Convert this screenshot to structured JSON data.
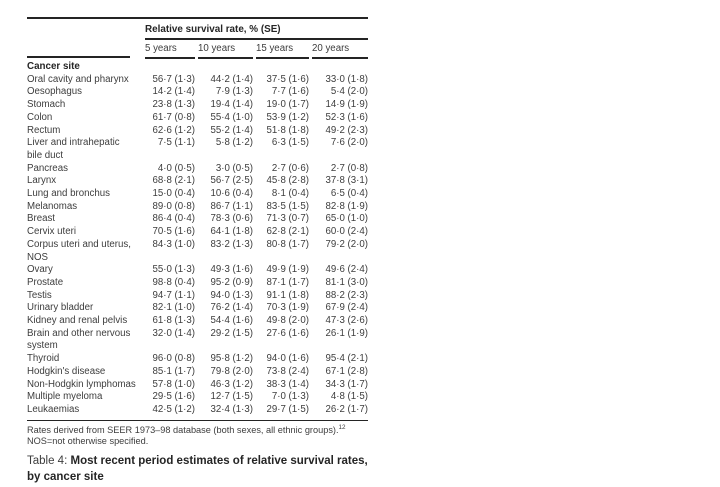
{
  "table": {
    "span_header": "Relative survival rate, % (SE)",
    "col_headers": [
      "5 years",
      "10 years",
      "15 years",
      "20 years"
    ],
    "row_header": "Cancer site",
    "rows": [
      {
        "label": "Oral cavity and pharynx",
        "values": [
          "56·7 (1·3)",
          "44·2 (1·4)",
          "37·5 (1·6)",
          "33·0 (1·8)"
        ]
      },
      {
        "label": "Oesophagus",
        "values": [
          "14·2 (1·4)",
          "7·9 (1·3)",
          "7·7 (1·6)",
          "5·4 (2·0)"
        ]
      },
      {
        "label": "Stomach",
        "values": [
          "23·8 (1·3)",
          "19·4 (1·4)",
          "19·0 (1·7)",
          "14·9 (1·9)"
        ]
      },
      {
        "label": "Colon",
        "values": [
          "61·7 (0·8)",
          "55·4 (1·0)",
          "53·9 (1·2)",
          "52·3 (1·6)"
        ]
      },
      {
        "label": "Rectum",
        "values": [
          "62·6 (1·2)",
          "55·2 (1·4)",
          "51·8 (1·8)",
          "49·2 (2·3)"
        ]
      },
      {
        "label": "Liver and intrahepatic\nbile duct",
        "values": [
          "7·5 (1·1)",
          "5·8 (1·2)",
          "6·3 (1·5)",
          "7·6 (2·0)"
        ]
      },
      {
        "label": "Pancreas",
        "values": [
          "4·0 (0·5)",
          "3·0 (0·5)",
          "2·7 (0·6)",
          "2·7 (0·8)"
        ]
      },
      {
        "label": "Larynx",
        "values": [
          "68·8 (2·1)",
          "56·7 (2·5)",
          "45·8 (2·8)",
          "37·8 (3·1)"
        ]
      },
      {
        "label": "Lung and bronchus",
        "values": [
          "15·0 (0·4)",
          "10·6 (0·4)",
          "8·1 (0·4)",
          "6·5 (0·4)"
        ]
      },
      {
        "label": "Melanomas",
        "values": [
          "89·0 (0·8)",
          "86·7 (1·1)",
          "83·5 (1·5)",
          "82·8 (1·9)"
        ]
      },
      {
        "label": "Breast",
        "values": [
          "86·4 (0·4)",
          "78·3 (0·6)",
          "71·3 (0·7)",
          "65·0 (1·0)"
        ]
      },
      {
        "label": "Cervix uteri",
        "values": [
          "70·5 (1·6)",
          "64·1 (1·8)",
          "62·8 (2·1)",
          "60·0 (2·4)"
        ]
      },
      {
        "label": "Corpus uteri and uterus,\nNOS",
        "values": [
          "84·3 (1·0)",
          "83·2 (1·3)",
          "80·8 (1·7)",
          "79·2 (2·0)"
        ]
      },
      {
        "label": "Ovary",
        "values": [
          "55·0 (1·3)",
          "49·3 (1·6)",
          "49·9 (1·9)",
          "49·6 (2·4)"
        ]
      },
      {
        "label": "Prostate",
        "values": [
          "98·8 (0·4)",
          "95·2 (0·9)",
          "87·1 (1·7)",
          "81·1 (3·0)"
        ]
      },
      {
        "label": "Testis",
        "values": [
          "94·7 (1·1)",
          "94·0 (1·3)",
          "91·1 (1·8)",
          "88·2 (2·3)"
        ]
      },
      {
        "label": "Urinary bladder",
        "values": [
          "82·1 (1·0)",
          "76·2 (1·4)",
          "70·3 (1·9)",
          "67·9 (2·4)"
        ]
      },
      {
        "label": "Kidney and renal pelvis",
        "values": [
          "61·8 (1·3)",
          "54·4 (1·6)",
          "49·8 (2·0)",
          "47·3 (2·6)"
        ]
      },
      {
        "label": "Brain and other nervous\nsystem",
        "values": [
          "32·0 (1·4)",
          "29·2 (1·5)",
          "27·6 (1·6)",
          "26·1 (1·9)"
        ]
      },
      {
        "label": "Thyroid",
        "values": [
          "96·0 (0·8)",
          "95·8 (1·2)",
          "94·0 (1·6)",
          "95·4 (2·1)"
        ]
      },
      {
        "label": "Hodgkin's disease",
        "values": [
          "85·1 (1·7)",
          "79·8 (2·0)",
          "73·8 (2·4)",
          "67·1 (2·8)"
        ]
      },
      {
        "label": "Non-Hodgkin lymphomas",
        "values": [
          "57·8 (1·0)",
          "46·3 (1·2)",
          "38·3 (1·4)",
          "34·3 (1·7)"
        ]
      },
      {
        "label": "Multiple myeloma",
        "values": [
          "29·5 (1·6)",
          "12·7 (1·5)",
          "7·0 (1·3)",
          "4·8 (1·5)"
        ]
      },
      {
        "label": "Leukaemias",
        "values": [
          "42·5 (1·2)",
          "32·4 (1·3)",
          "29·7 (1·5)",
          "26·2 (1·7)"
        ]
      }
    ],
    "footnotes": {
      "line1": "Rates derived from SEER 1973–98 database (both sexes, all ethnic groups).",
      "line1_sup": "12",
      "line2": "NOS=not otherwise specified."
    },
    "caption": {
      "prefix": "Table 4: ",
      "bold": "Most recent period estimates of relative survival rates, by cancer site"
    },
    "colors": {
      "text": "#3d3d3d",
      "rule": "#242424",
      "background": "#ffffff"
    }
  }
}
